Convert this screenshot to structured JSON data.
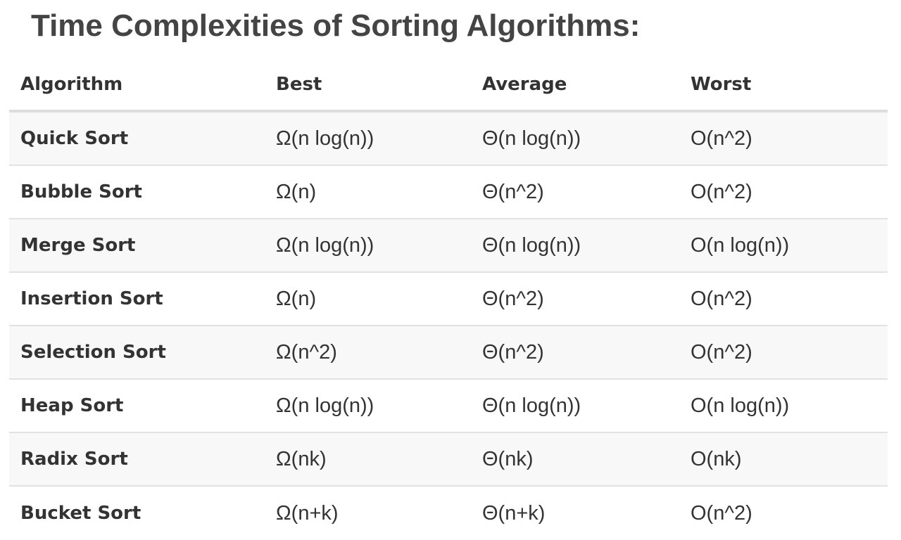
{
  "title": "Time Complexities of Sorting Algorithms:",
  "table": {
    "headers": [
      "Algorithm",
      "Best",
      "Average",
      "Worst"
    ],
    "rows": [
      [
        "Quick Sort",
        "Ω(n log(n))",
        "Θ(n log(n))",
        "O(n^2)"
      ],
      [
        "Bubble Sort",
        "Ω(n)",
        "Θ(n^2)",
        "O(n^2)"
      ],
      [
        "Merge Sort",
        "Ω(n log(n))",
        "Θ(n log(n))",
        "O(n log(n))"
      ],
      [
        "Insertion Sort",
        "Ω(n)",
        "Θ(n^2)",
        "O(n^2)"
      ],
      [
        "Selection Sort",
        "Ω(n^2)",
        "Θ(n^2)",
        "O(n^2)"
      ],
      [
        "Heap Sort",
        "Ω(n log(n))",
        "Θ(n log(n))",
        "O(n log(n))"
      ],
      [
        "Radix Sort",
        "Ω(nk)",
        "Θ(nk)",
        "O(nk)"
      ],
      [
        "Bucket Sort",
        "Ω(n+k)",
        "Θ(n+k)",
        "O(n^2)"
      ]
    ]
  },
  "colors": {
    "title": "#444444",
    "text": "#333333",
    "stripe": "#f8f8f8",
    "border": "#e2e2e2"
  }
}
